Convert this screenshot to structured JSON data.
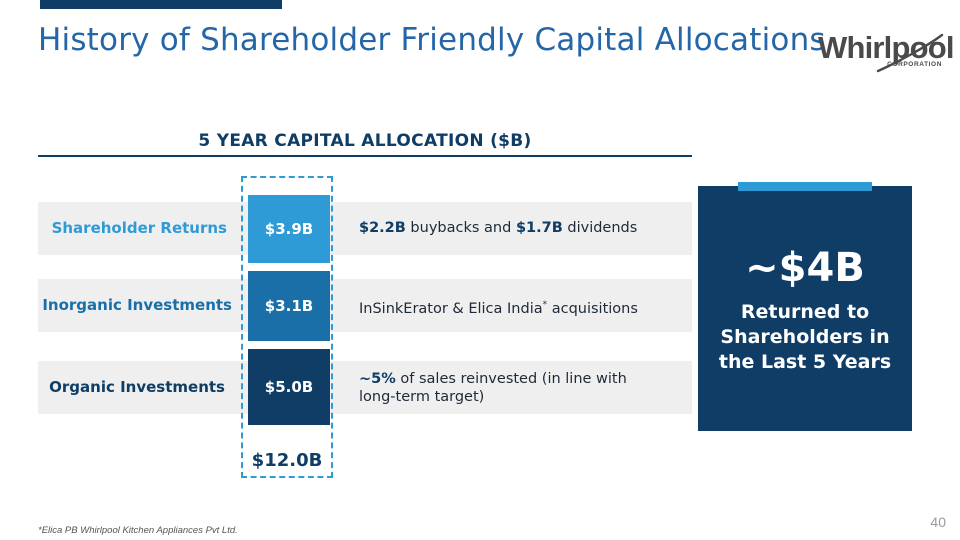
{
  "slide": {
    "title": "History of Shareholder Friendly Capital Allocations",
    "page_number": "40",
    "footnote": "*Elica PB Whirlpool Kitchen Appliances Pvt Ltd."
  },
  "logo": {
    "word_prefix": "Whirl",
    "word_suffix": "ool",
    "corporation": "CORPORATION",
    "color": "#4a4a4a"
  },
  "allocation": {
    "heading": "5 YEAR CAPITAL ALLOCATION ($B)",
    "total": "$12.0B",
    "rows": [
      {
        "label": "Shareholder Returns",
        "value": "$3.9B",
        "label_color": "#2e9bd6",
        "box_color": "#2e9bd6",
        "desc_1_bold": "$2.2B",
        "desc_1_text": " buybacks and ",
        "desc_2_bold": "$1.7B",
        "desc_2_text": " dividends"
      },
      {
        "label": "Inorganic Investments",
        "value": "$3.1B",
        "label_color": "#1a6fa8",
        "box_color": "#1a6fa8",
        "desc_text": "InSinkErator & Elica India",
        "desc_sup": "*",
        "desc_suffix": " acquisitions"
      },
      {
        "label": "Organic Investments",
        "value": "$5.0B",
        "label_color": "#0f3d66",
        "box_color": "#0f3d66",
        "desc_bold": "~5%",
        "desc_line_1": " of sales reinvested (in line with",
        "desc_line_2": "long-term target)"
      }
    ]
  },
  "callout": {
    "big_value": "~$4B",
    "line_1": "Returned to",
    "line_2": "Shareholders in",
    "line_3": "the Last 5 Years"
  },
  "colors": {
    "navy": "#0f3d66",
    "accent_blue": "#2e9bd6",
    "mid_blue": "#1a6fa8",
    "title_blue": "#2466a8",
    "band_gray": "#efefef"
  }
}
